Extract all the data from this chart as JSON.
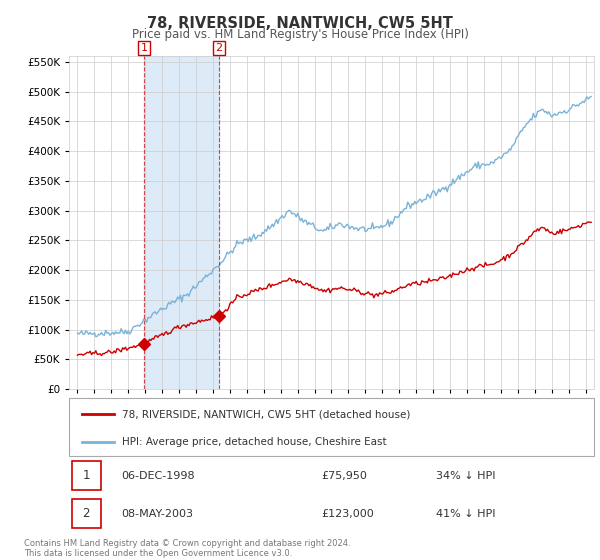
{
  "title": "78, RIVERSIDE, NANTWICH, CW5 5HT",
  "subtitle": "Price paid vs. HM Land Registry's House Price Index (HPI)",
  "background_color": "#ffffff",
  "grid_color": "#cccccc",
  "hpi_color": "#7ab3d8",
  "price_color": "#cc0000",
  "shade_color": "#ddeaf7",
  "purchases": [
    {
      "date_num": 1998.92,
      "price": 75950,
      "label": "1"
    },
    {
      "date_num": 2003.36,
      "price": 123000,
      "label": "2"
    }
  ],
  "legend_entries": [
    "78, RIVERSIDE, NANTWICH, CW5 5HT (detached house)",
    "HPI: Average price, detached house, Cheshire East"
  ],
  "table_rows": [
    {
      "num": "1",
      "date": "06-DEC-1998",
      "price": "£75,950",
      "hpi": "34% ↓ HPI"
    },
    {
      "num": "2",
      "date": "08-MAY-2003",
      "price": "£123,000",
      "hpi": "41% ↓ HPI"
    }
  ],
  "footnote": "Contains HM Land Registry data © Crown copyright and database right 2024.\nThis data is licensed under the Open Government Licence v3.0.",
  "ylim": [
    0,
    560000
  ],
  "xlim": [
    1994.5,
    2025.5
  ],
  "yticks": [
    0,
    50000,
    100000,
    150000,
    200000,
    250000,
    300000,
    350000,
    400000,
    450000,
    500000,
    550000
  ],
  "xticks": [
    1995,
    1996,
    1997,
    1998,
    1999,
    2000,
    2001,
    2002,
    2003,
    2004,
    2005,
    2006,
    2007,
    2008,
    2009,
    2010,
    2011,
    2012,
    2013,
    2014,
    2015,
    2016,
    2017,
    2018,
    2019,
    2020,
    2021,
    2022,
    2023,
    2024,
    2025
  ],
  "hpi_anchors_x": [
    1995.0,
    1996.0,
    1997.0,
    1998.0,
    1998.92,
    2000.0,
    2001.5,
    2003.36,
    2004.5,
    2005.5,
    2006.5,
    2007.5,
    2008.5,
    2009.5,
    2010.5,
    2011.5,
    2012.5,
    2013.5,
    2014.5,
    2015.5,
    2016.5,
    2017.5,
    2018.5,
    2019.5,
    2020.5,
    2021.5,
    2022.0,
    2022.5,
    2023.0,
    2024.0,
    2025.3
  ],
  "hpi_anchors_y": [
    93000,
    94000,
    95000,
    97000,
    115000,
    135000,
    160000,
    210000,
    245000,
    255000,
    275000,
    300000,
    280000,
    265000,
    278000,
    270000,
    268000,
    280000,
    308000,
    320000,
    335000,
    355000,
    375000,
    380000,
    400000,
    445000,
    460000,
    470000,
    460000,
    470000,
    490000
  ],
  "price_anchors_x": [
    1995.0,
    1997.0,
    1998.92,
    2001.0,
    2003.36,
    2004.5,
    2006.0,
    2007.5,
    2008.5,
    2009.5,
    2010.5,
    2011.5,
    2012.5,
    2013.5,
    2014.5,
    2015.5,
    2016.5,
    2017.5,
    2018.5,
    2019.5,
    2020.5,
    2021.5,
    2022.0,
    2022.5,
    2023.0,
    2024.0,
    2025.3
  ],
  "price_anchors_y": [
    58000,
    62000,
    75950,
    105000,
    123000,
    155000,
    170000,
    185000,
    178000,
    165000,
    170000,
    165000,
    158000,
    163000,
    175000,
    180000,
    185000,
    196000,
    205000,
    210000,
    225000,
    250000,
    265000,
    272000,
    262000,
    268000,
    282000
  ]
}
